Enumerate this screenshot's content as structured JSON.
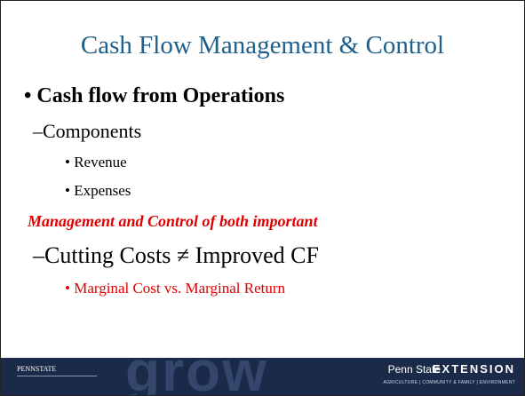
{
  "title": "Cash Flow Management & Control",
  "bullets": [
    {
      "text": "• Cash flow from Operations"
    },
    {
      "text": "–Components"
    },
    {
      "text": "• Revenue"
    },
    {
      "text": "• Expenses"
    },
    {
      "text": "Management and Control of both important"
    },
    {
      "text": "–Cutting Costs ≠ Improved CF"
    },
    {
      "text": "• Marginal Cost vs. Marginal Return"
    }
  ],
  "footer": {
    "logo": "PENNSTATE",
    "watermark": "grow",
    "brand": "Penn State",
    "brand_bold": "EXTENSION",
    "tagline": "AGRICULTURE | COMMUNITY & FAMILY | ENVIRONMENT"
  }
}
